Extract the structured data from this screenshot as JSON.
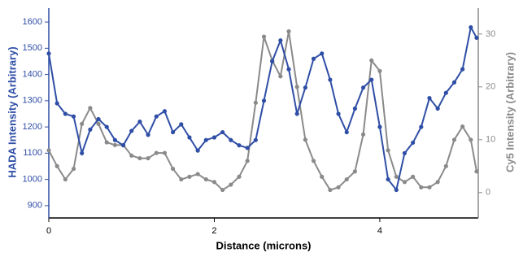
{
  "chart_data": {
    "type": "line",
    "x_label": "Distance (microns)",
    "y_label": "HADA Intensity (Arbitrary)",
    "y2_label": "Cy5 Intensity (Arbitrary)",
    "x": [
      0,
      0.1,
      0.2,
      0.3,
      0.4,
      0.5,
      0.6,
      0.7,
      0.8,
      0.9,
      1.0,
      1.1,
      1.2,
      1.3,
      1.4,
      1.5,
      1.6,
      1.7,
      1.8,
      1.9,
      2.0,
      2.1,
      2.2,
      2.3,
      2.4,
      2.5,
      2.6,
      2.7,
      2.8,
      2.9,
      3.0,
      3.1,
      3.2,
      3.3,
      3.4,
      3.5,
      3.6,
      3.7,
      3.8,
      3.9,
      4.0,
      4.1,
      4.2,
      4.3,
      4.4,
      4.5,
      4.6,
      4.7,
      4.8,
      4.9,
      5.0,
      5.1,
      5.17
    ],
    "series": [
      {
        "name": "HADA",
        "color": "#2f4ea6",
        "axis": "y",
        "values": [
          1480,
          1290,
          1250,
          1240,
          1100,
          1190,
          1230,
          1200,
          1150,
          1130,
          1185,
          1220,
          1170,
          1240,
          1260,
          1180,
          1210,
          1160,
          1110,
          1150,
          1160,
          1180,
          1150,
          1130,
          1120,
          1150,
          1300,
          1450,
          1530,
          1420,
          1250,
          1350,
          1460,
          1480,
          1380,
          1250,
          1180,
          1270,
          1350,
          1380,
          1200,
          1000,
          960,
          1100,
          1140,
          1200,
          1310,
          1270,
          1330,
          1370,
          1420,
          1580,
          1540
        ]
      },
      {
        "name": "Cy5",
        "color": "#8a8a8a",
        "axis": "y2",
        "values": [
          8,
          5,
          2.5,
          4.5,
          13,
          16,
          13,
          9.5,
          9,
          9,
          7,
          6.5,
          6.5,
          7.5,
          7.5,
          4.5,
          2.5,
          3,
          3.5,
          2.5,
          2,
          0.5,
          1.5,
          3,
          6,
          17,
          29.5,
          25,
          22,
          30.5,
          20,
          10,
          6,
          3,
          0.5,
          1,
          2.5,
          4,
          11,
          25,
          23,
          8,
          3,
          2,
          3,
          1,
          1,
          2,
          5,
          10,
          12.5,
          10,
          4
        ]
      }
    ],
    "xlim": [
      0,
      5.19
    ],
    "xticks": [
      0,
      2,
      4
    ],
    "ylim": [
      853,
      1653
    ],
    "yticks": [
      900,
      1000,
      1100,
      1200,
      1300,
      1400,
      1500,
      1600
    ],
    "y2lim": [
      -4.8,
      34.9
    ],
    "y2ticks": [
      0,
      10,
      20,
      30
    ]
  }
}
